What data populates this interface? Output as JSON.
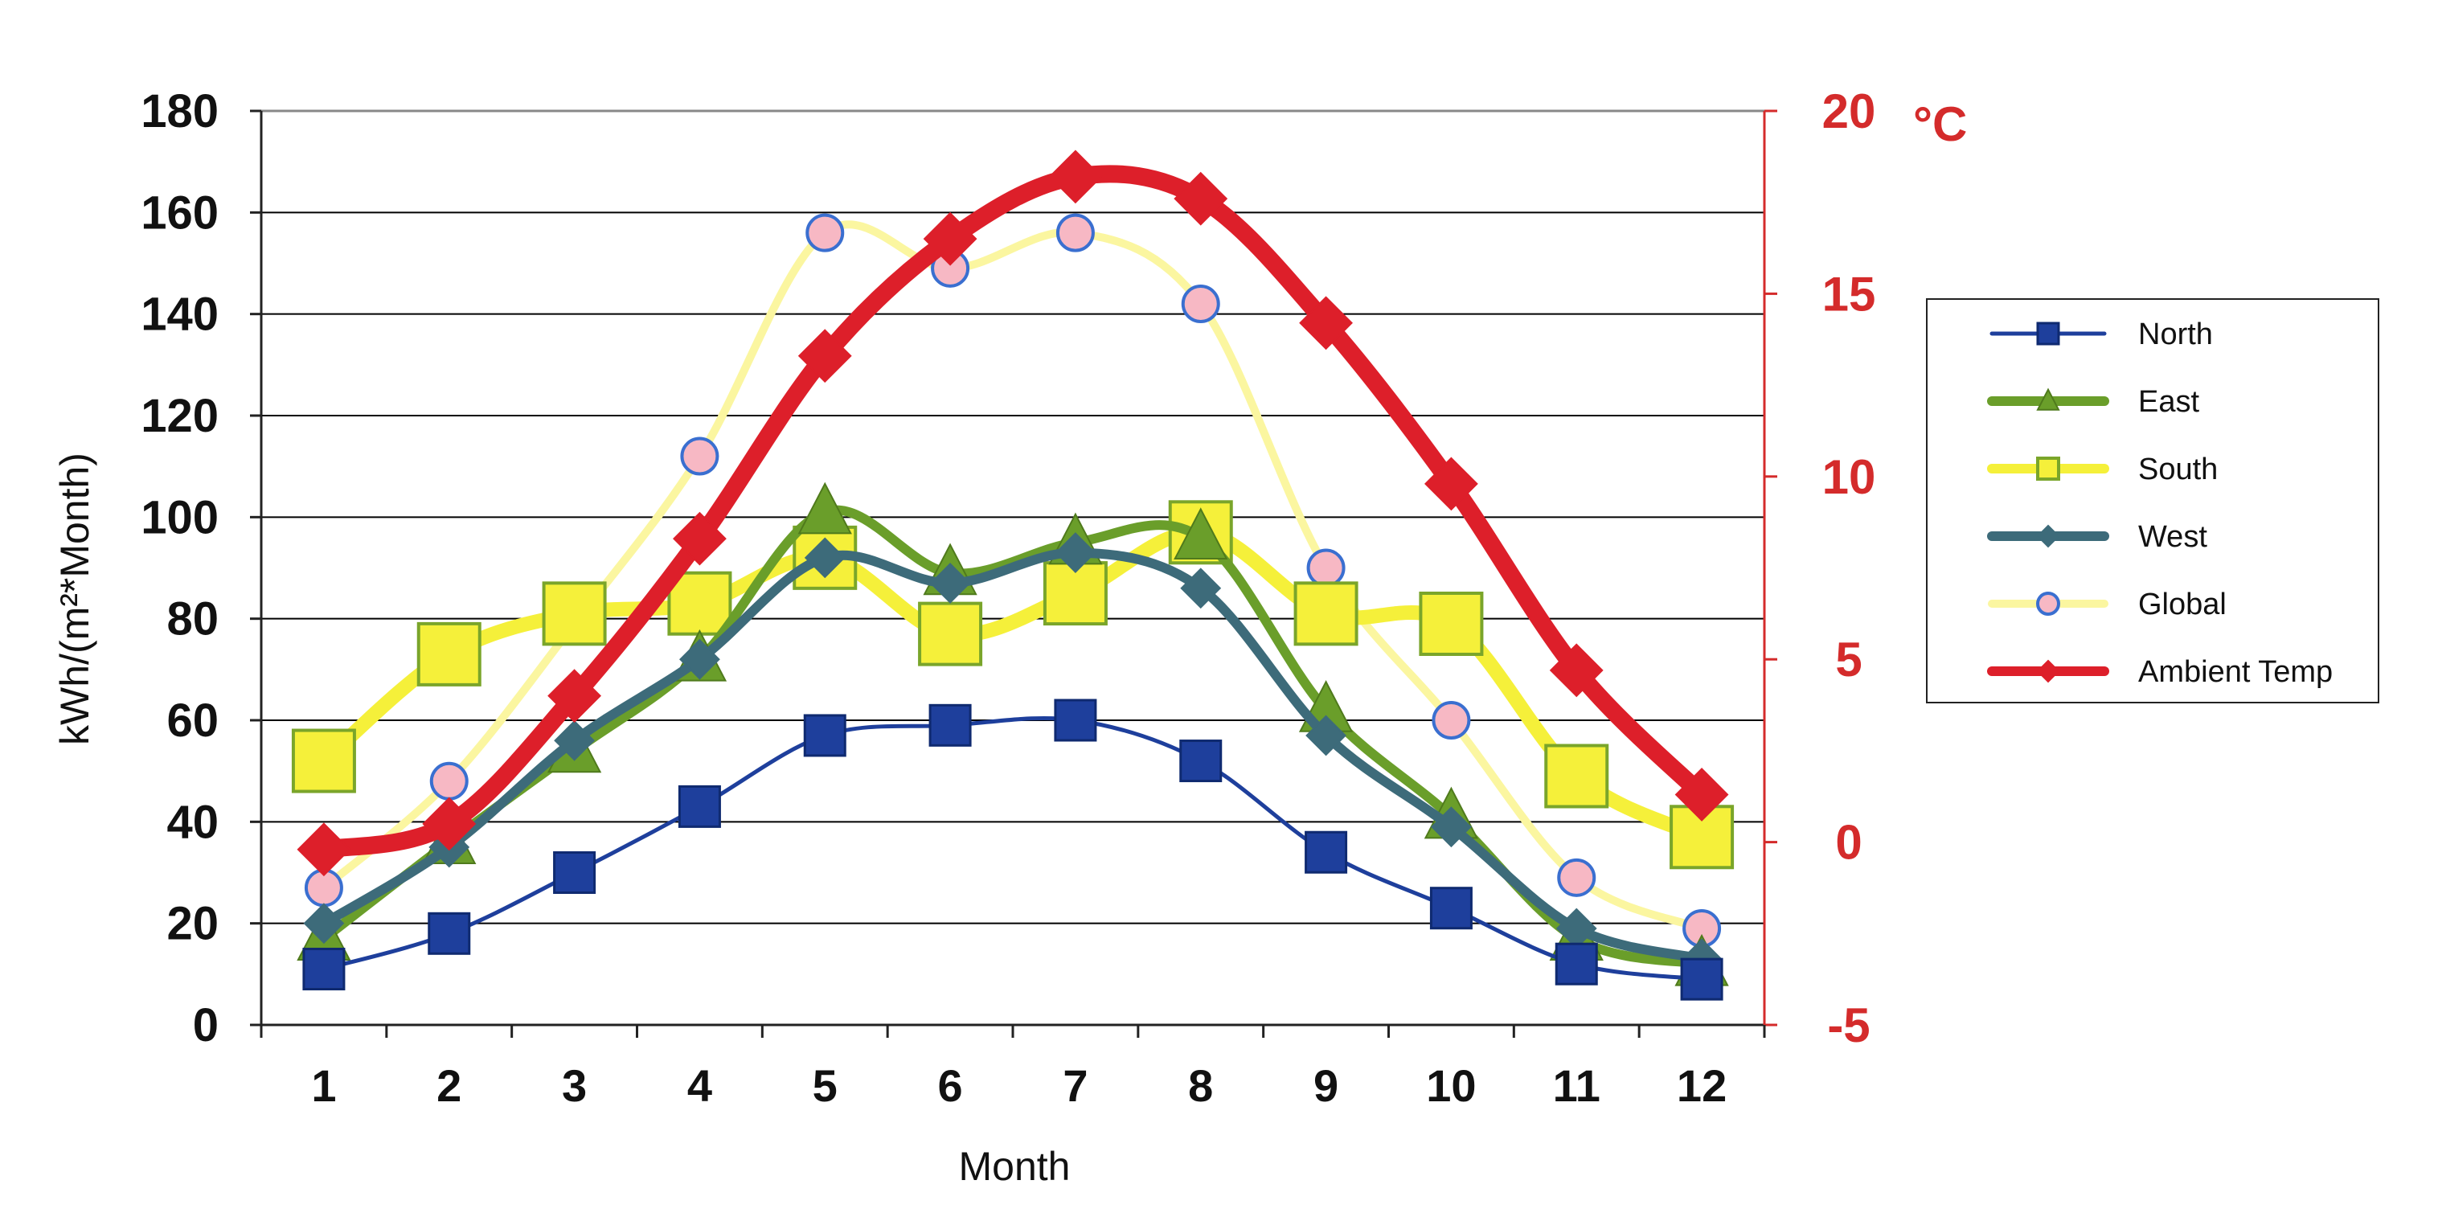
{
  "chart_data": {
    "type": "line",
    "title": "",
    "xlabel": "Month",
    "ylabel": "kWh/(m²*Month)",
    "y2label": "°C",
    "categories": [
      "1",
      "2",
      "3",
      "4",
      "5",
      "6",
      "7",
      "8",
      "9",
      "10",
      "11",
      "12"
    ],
    "ylim": [
      0,
      180
    ],
    "yticks": [
      "0",
      "20",
      "40",
      "60",
      "80",
      "100",
      "120",
      "140",
      "160",
      "180"
    ],
    "y2lim": [
      -5,
      20
    ],
    "y2ticks": [
      "-5",
      "0",
      "5",
      "10",
      "15",
      "20"
    ],
    "grid": true,
    "legend_position": "right",
    "series": [
      {
        "name": "North",
        "axis": "left",
        "color": "#1e3f9c",
        "marker": "square",
        "values": [
          11,
          18,
          30,
          43,
          57,
          59,
          60,
          52,
          34,
          23,
          12,
          9
        ]
      },
      {
        "name": "East",
        "axis": "left",
        "color": "#6a9e2a",
        "marker": "triangle",
        "values": [
          17,
          36,
          54,
          72,
          101,
          89,
          95,
          96,
          62,
          41,
          17,
          12
        ]
      },
      {
        "name": "South",
        "axis": "left",
        "color": "#f5f03a",
        "marker": "square-open",
        "values": [
          52,
          73,
          81,
          83,
          92,
          77,
          85,
          97,
          81,
          79,
          49,
          37
        ]
      },
      {
        "name": "West",
        "axis": "left",
        "color": "#3d6b7a",
        "marker": "diamond",
        "values": [
          20,
          35,
          56,
          72,
          92,
          87,
          93,
          86,
          57,
          39,
          19,
          13
        ]
      },
      {
        "name": "Global",
        "axis": "left",
        "color": "#fbf6a0",
        "marker": "circle",
        "values": [
          27,
          48,
          79,
          112,
          156,
          149,
          156,
          142,
          90,
          60,
          29,
          19
        ]
      },
      {
        "name": "Ambient Temp",
        "axis": "right",
        "color": "#dd1f2a",
        "marker": "diamond",
        "values": [
          -0.2,
          0.5,
          4.0,
          8.3,
          13.3,
          16.5,
          18.2,
          17.6,
          14.2,
          9.8,
          4.7,
          1.3
        ]
      }
    ]
  },
  "colors": {
    "temp_axis": "#d42b2b",
    "grid": "#000000",
    "frame": "#888888"
  }
}
